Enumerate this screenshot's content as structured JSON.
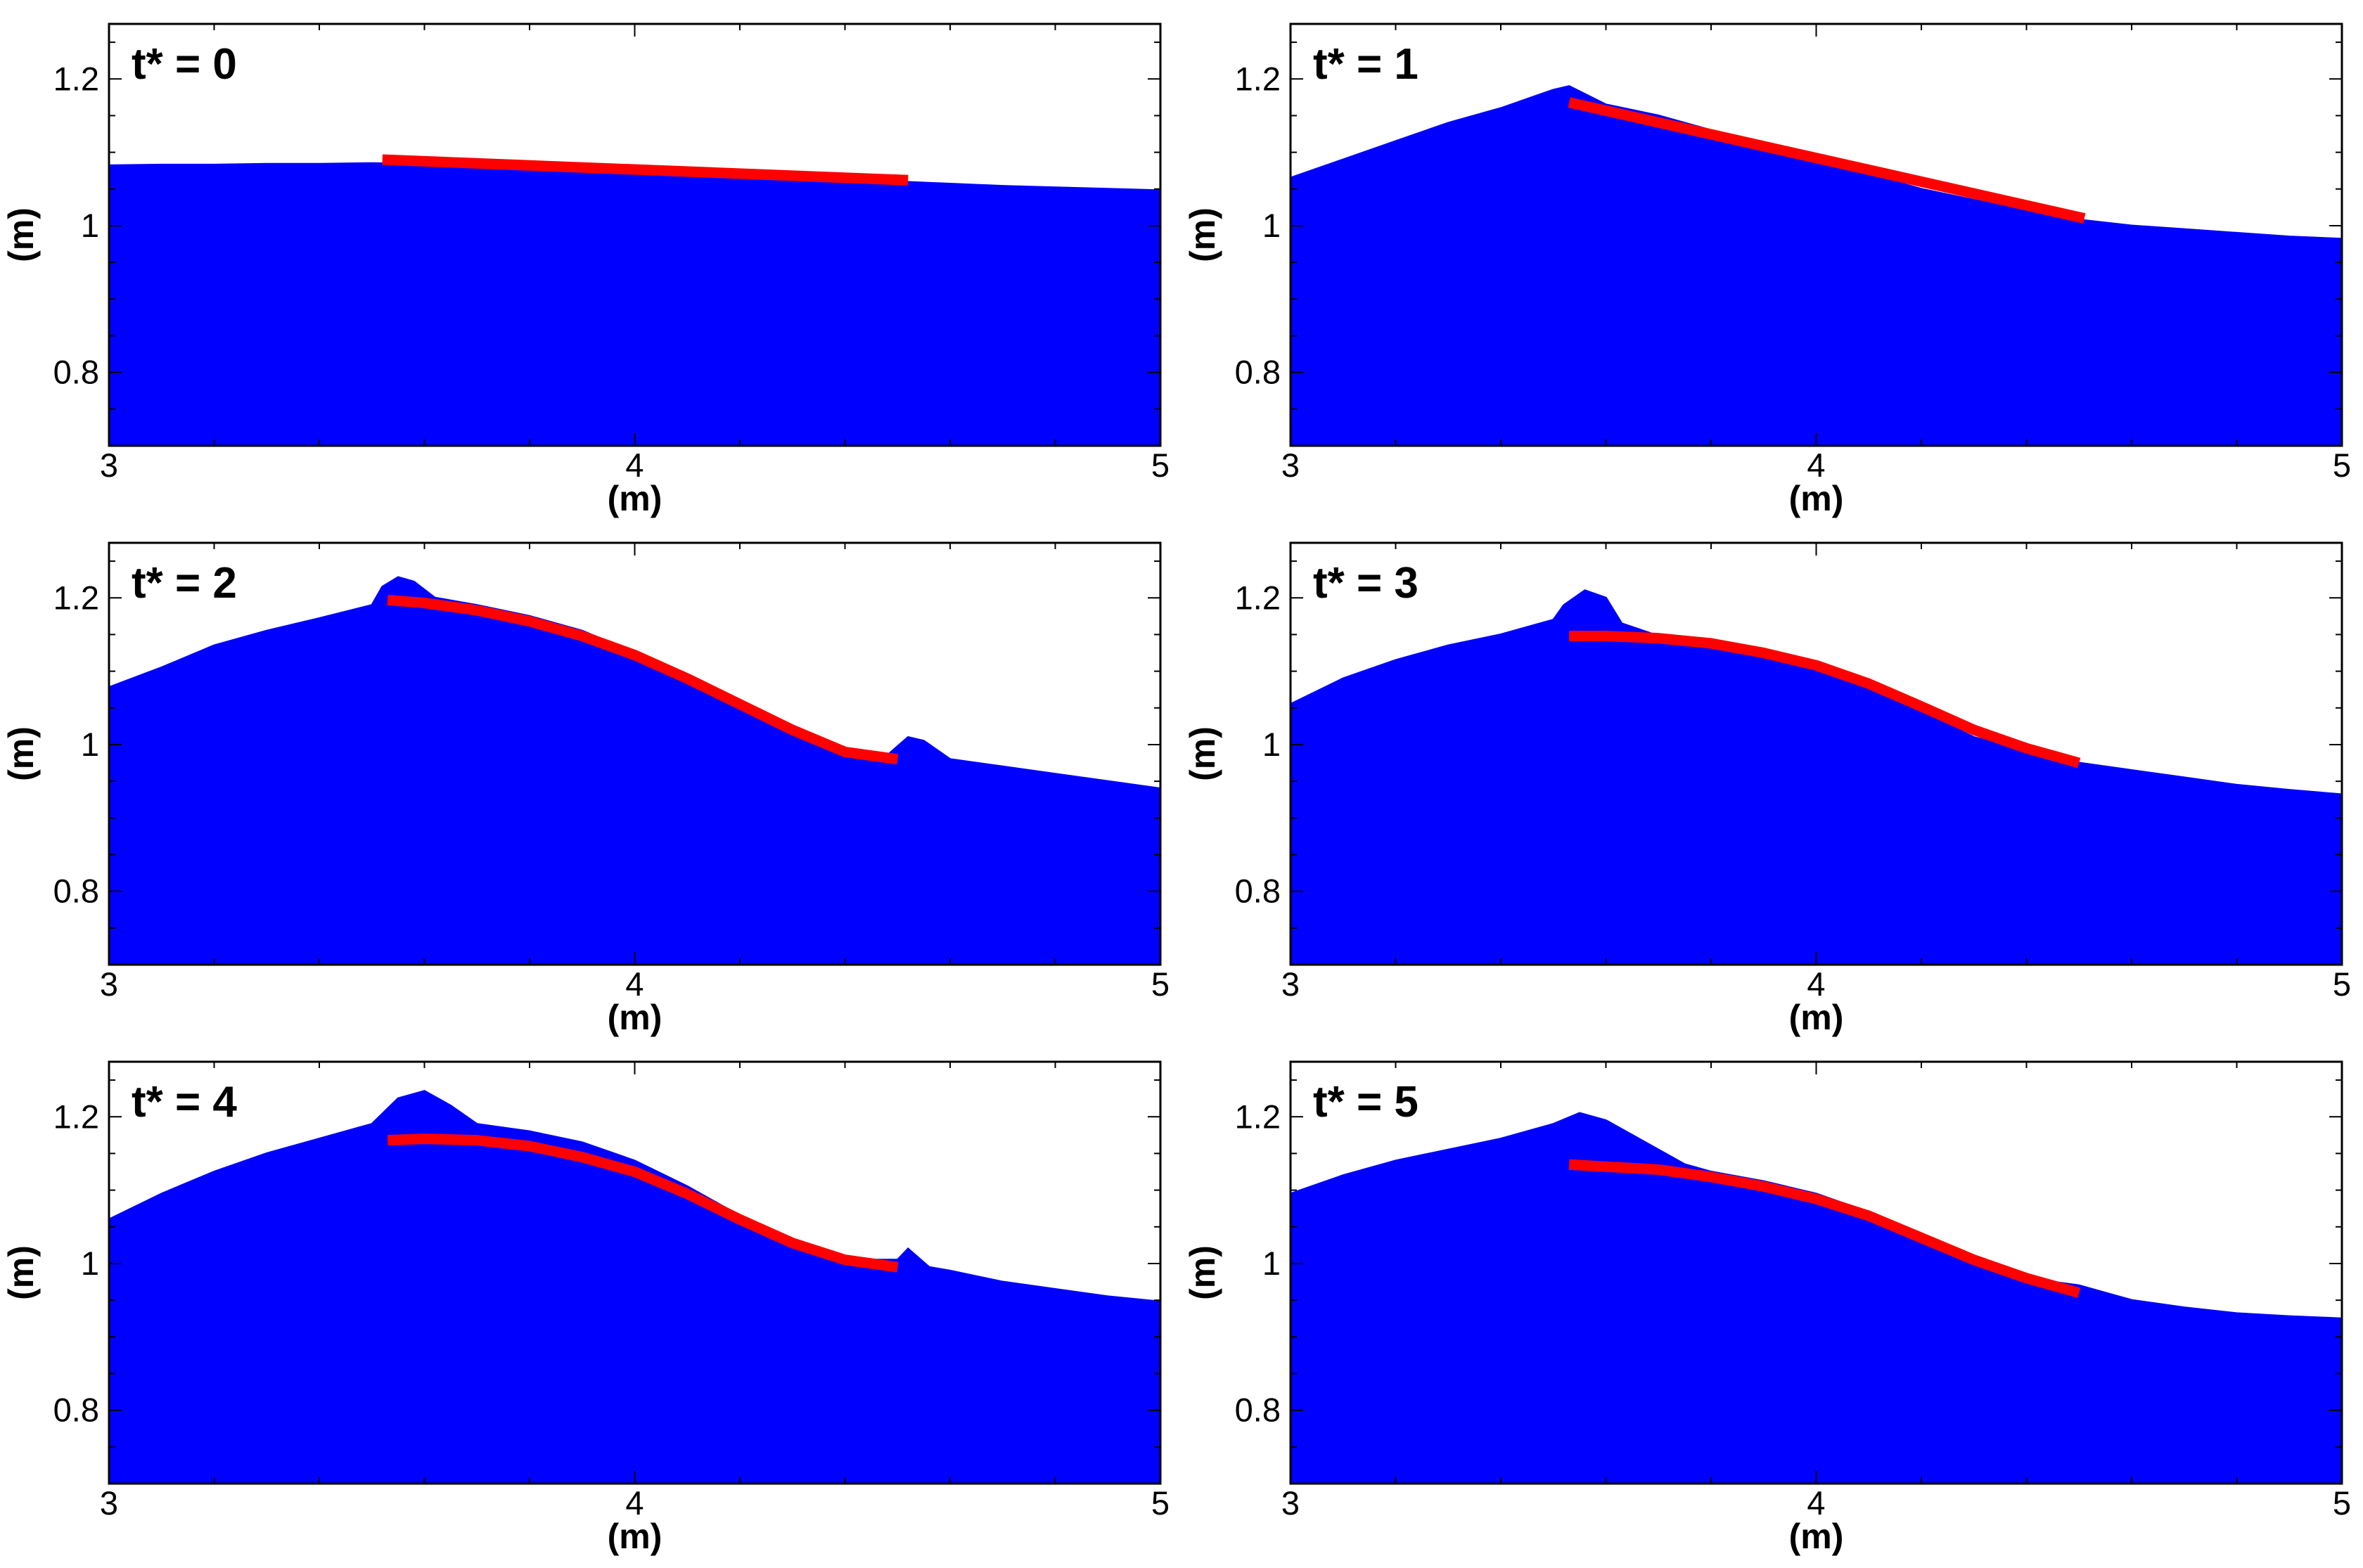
{
  "chart_data": [
    {
      "type": "area",
      "title": "t* = 0",
      "xlabel": "(m)",
      "ylabel": "(m)",
      "xlim": [
        3,
        5
      ],
      "ylim": [
        0.7,
        1.275
      ],
      "xticks": [
        3,
        4,
        5
      ],
      "xtick_labels": [
        "3",
        "4",
        "5"
      ],
      "yticks": [
        0.8,
        1,
        1.2
      ],
      "ytick_labels": [
        "0.8",
        "1",
        "1.2"
      ],
      "grid": false,
      "colors": {
        "fluid": "#0000ff",
        "plate": "#ff0000"
      },
      "series": [
        {
          "type": "area",
          "x": [
            3.0,
            3.1,
            3.2,
            3.3,
            3.4,
            3.5,
            3.6,
            3.7,
            3.8,
            3.9,
            4.0,
            4.1,
            4.2,
            4.3,
            4.4,
            4.5,
            4.6,
            4.7,
            4.8,
            4.9,
            5.0
          ],
          "y": [
            1.082,
            1.083,
            1.083,
            1.084,
            1.084,
            1.085,
            1.084,
            1.082,
            1.08,
            1.077,
            1.075,
            1.072,
            1.069,
            1.066,
            1.063,
            1.06,
            1.057,
            1.054,
            1.052,
            1.05,
            1.048
          ]
        },
        {
          "type": "line",
          "x": [
            3.52,
            4.52
          ],
          "y": [
            1.09,
            1.062
          ]
        }
      ]
    },
    {
      "type": "area",
      "title": "t* = 1",
      "xlabel": "(m)",
      "ylabel": "(m)",
      "xlim": [
        3,
        5
      ],
      "ylim": [
        0.7,
        1.275
      ],
      "xticks": [
        3,
        4,
        5
      ],
      "xtick_labels": [
        "3",
        "4",
        "5"
      ],
      "yticks": [
        0.8,
        1,
        1.2
      ],
      "ytick_labels": [
        "0.8",
        "1",
        "1.2"
      ],
      "grid": false,
      "colors": {
        "fluid": "#0000ff",
        "plate": "#ff0000"
      },
      "series": [
        {
          "type": "area",
          "x": [
            3.0,
            3.1,
            3.2,
            3.3,
            3.4,
            3.5,
            3.53,
            3.6,
            3.7,
            3.8,
            3.9,
            4.0,
            4.1,
            4.2,
            4.3,
            4.4,
            4.5,
            4.6,
            4.7,
            4.8,
            4.9,
            5.0
          ],
          "y": [
            1.065,
            1.09,
            1.115,
            1.14,
            1.16,
            1.185,
            1.19,
            1.165,
            1.15,
            1.13,
            1.11,
            1.09,
            1.07,
            1.05,
            1.035,
            1.02,
            1.008,
            1.0,
            0.995,
            0.99,
            0.985,
            0.982
          ]
        },
        {
          "type": "line",
          "x": [
            3.53,
            4.51
          ],
          "y": [
            1.168,
            1.01
          ]
        }
      ]
    },
    {
      "type": "area",
      "title": "t* = 2",
      "xlabel": "(m)",
      "ylabel": "(m)",
      "xlim": [
        3,
        5
      ],
      "ylim": [
        0.7,
        1.275
      ],
      "xticks": [
        3,
        4,
        5
      ],
      "xtick_labels": [
        "3",
        "4",
        "5"
      ],
      "yticks": [
        0.8,
        1,
        1.2
      ],
      "ytick_labels": [
        "0.8",
        "1",
        "1.2"
      ],
      "grid": false,
      "colors": {
        "fluid": "#0000ff",
        "plate": "#ff0000"
      },
      "series": [
        {
          "type": "area",
          "x": [
            3.0,
            3.1,
            3.2,
            3.3,
            3.4,
            3.5,
            3.52,
            3.55,
            3.58,
            3.62,
            3.7,
            3.8,
            3.9,
            4.0,
            4.1,
            4.2,
            4.3,
            4.4,
            4.48,
            4.52,
            4.55,
            4.6,
            4.7,
            4.8,
            4.9,
            5.0
          ],
          "y": [
            1.078,
            1.105,
            1.135,
            1.155,
            1.172,
            1.19,
            1.215,
            1.228,
            1.222,
            1.2,
            1.19,
            1.175,
            1.155,
            1.125,
            1.09,
            1.055,
            1.02,
            0.995,
            0.985,
            1.01,
            1.005,
            0.98,
            0.97,
            0.96,
            0.95,
            0.94
          ]
        },
        {
          "type": "line",
          "x": [
            3.53,
            3.6,
            3.7,
            3.8,
            3.9,
            4.0,
            4.1,
            4.2,
            4.3,
            4.4,
            4.5
          ],
          "y": [
            1.197,
            1.193,
            1.183,
            1.168,
            1.148,
            1.122,
            1.09,
            1.055,
            1.02,
            0.99,
            0.98
          ]
        }
      ]
    },
    {
      "type": "area",
      "title": "t* = 3",
      "xlabel": "(m)",
      "ylabel": "(m)",
      "xlim": [
        3,
        5
      ],
      "ylim": [
        0.7,
        1.275
      ],
      "xticks": [
        3,
        4,
        5
      ],
      "xtick_labels": [
        "3",
        "4",
        "5"
      ],
      "yticks": [
        0.8,
        1,
        1.2
      ],
      "ytick_labels": [
        "0.8",
        "1",
        "1.2"
      ],
      "grid": false,
      "colors": {
        "fluid": "#0000ff",
        "plate": "#ff0000"
      },
      "series": [
        {
          "type": "area",
          "x": [
            3.0,
            3.1,
            3.2,
            3.3,
            3.4,
            3.5,
            3.52,
            3.56,
            3.6,
            3.63,
            3.7,
            3.8,
            3.9,
            4.0,
            4.1,
            4.2,
            4.3,
            4.4,
            4.5,
            4.6,
            4.7,
            4.8,
            4.9,
            5.0
          ],
          "y": [
            1.055,
            1.09,
            1.115,
            1.135,
            1.15,
            1.17,
            1.19,
            1.21,
            1.2,
            1.165,
            1.148,
            1.14,
            1.128,
            1.11,
            1.08,
            1.045,
            1.01,
            0.992,
            0.975,
            0.965,
            0.955,
            0.945,
            0.938,
            0.932
          ]
        },
        {
          "type": "line",
          "x": [
            3.53,
            3.6,
            3.7,
            3.8,
            3.9,
            4.0,
            4.1,
            4.2,
            4.3,
            4.4,
            4.5
          ],
          "y": [
            1.148,
            1.148,
            1.145,
            1.138,
            1.125,
            1.108,
            1.083,
            1.052,
            1.02,
            0.995,
            0.975
          ]
        }
      ]
    },
    {
      "type": "area",
      "title": "t* = 4",
      "xlabel": "(m)",
      "ylabel": "(m)",
      "xlim": [
        3,
        5
      ],
      "ylim": [
        0.7,
        1.275
      ],
      "xticks": [
        3,
        4,
        5
      ],
      "xtick_labels": [
        "3",
        "4",
        "5"
      ],
      "yticks": [
        0.8,
        1,
        1.2
      ],
      "ytick_labels": [
        "0.8",
        "1",
        "1.2"
      ],
      "grid": false,
      "colors": {
        "fluid": "#0000ff",
        "plate": "#ff0000"
      },
      "series": [
        {
          "type": "area",
          "x": [
            3.0,
            3.1,
            3.2,
            3.3,
            3.4,
            3.5,
            3.55,
            3.6,
            3.65,
            3.7,
            3.8,
            3.9,
            4.0,
            4.1,
            4.2,
            4.3,
            4.4,
            4.5,
            4.52,
            4.56,
            4.6,
            4.7,
            4.8,
            4.9,
            5.0
          ],
          "y": [
            1.06,
            1.095,
            1.125,
            1.15,
            1.17,
            1.19,
            1.225,
            1.235,
            1.215,
            1.19,
            1.18,
            1.165,
            1.14,
            1.105,
            1.065,
            1.03,
            1.005,
            1.005,
            1.02,
            0.995,
            0.99,
            0.975,
            0.965,
            0.955,
            0.948
          ]
        },
        {
          "type": "line",
          "x": [
            3.53,
            3.6,
            3.7,
            3.8,
            3.9,
            4.0,
            4.1,
            4.2,
            4.3,
            4.4,
            4.5
          ],
          "y": [
            1.168,
            1.17,
            1.168,
            1.16,
            1.145,
            1.125,
            1.095,
            1.06,
            1.028,
            1.005,
            0.995
          ]
        }
      ]
    },
    {
      "type": "area",
      "title": "t* = 5",
      "xlabel": "(m)",
      "ylabel": "(m)",
      "xlim": [
        3,
        5
      ],
      "ylim": [
        0.7,
        1.275
      ],
      "xticks": [
        3,
        4,
        5
      ],
      "xtick_labels": [
        "3",
        "4",
        "5"
      ],
      "yticks": [
        0.8,
        1,
        1.2
      ],
      "ytick_labels": [
        "0.8",
        "1",
        "1.2"
      ],
      "grid": false,
      "colors": {
        "fluid": "#0000ff",
        "plate": "#ff0000"
      },
      "series": [
        {
          "type": "area",
          "x": [
            3.0,
            3.1,
            3.2,
            3.3,
            3.4,
            3.5,
            3.55,
            3.6,
            3.65,
            3.7,
            3.75,
            3.8,
            3.9,
            4.0,
            4.1,
            4.2,
            4.3,
            4.4,
            4.5,
            4.55,
            4.6,
            4.7,
            4.8,
            4.9,
            5.0
          ],
          "y": [
            1.095,
            1.12,
            1.14,
            1.155,
            1.17,
            1.19,
            1.205,
            1.195,
            1.175,
            1.155,
            1.135,
            1.125,
            1.112,
            1.095,
            1.07,
            1.04,
            1.005,
            0.98,
            0.97,
            0.96,
            0.95,
            0.94,
            0.932,
            0.928,
            0.925
          ]
        },
        {
          "type": "line",
          "x": [
            3.53,
            3.6,
            3.7,
            3.8,
            3.9,
            4.0,
            4.1,
            4.2,
            4.3,
            4.4,
            4.5
          ],
          "y": [
            1.135,
            1.132,
            1.128,
            1.118,
            1.105,
            1.088,
            1.065,
            1.035,
            1.005,
            0.98,
            0.96
          ]
        }
      ]
    }
  ]
}
